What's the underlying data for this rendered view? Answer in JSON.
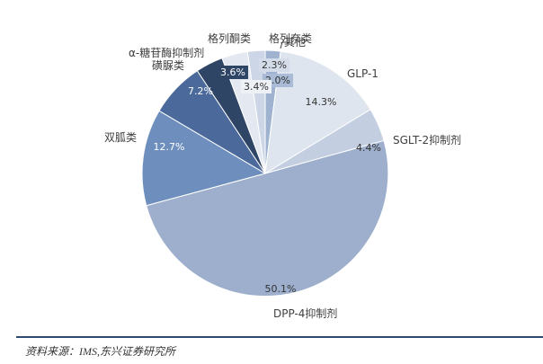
{
  "chart_data": {
    "type": "pie",
    "title": "",
    "center": [
      295,
      193
    ],
    "radius": 137,
    "start_angle_deg": 90,
    "direction": "clockwise",
    "slices": [
      {
        "name": "其他",
        "value": 2.0,
        "label": "2.0%",
        "color": "#9fb3d1"
      },
      {
        "name": "GLP-1",
        "value": 14.3,
        "label": "14.3%",
        "color": "#dfe5ef"
      },
      {
        "name": "SGLT-2抑制剂",
        "value": 4.4,
        "label": "4.4%",
        "color": "#c3cfe1"
      },
      {
        "name": "DPP-4抑制剂",
        "value": 50.1,
        "label": "50.1%",
        "color": "#9dafcc"
      },
      {
        "name": "双胍类",
        "value": 12.7,
        "label": "12.7%",
        "color": "#6e8fbd"
      },
      {
        "name": "磺脲类",
        "value": 7.2,
        "label": "7.2%",
        "color": "#4b6a9b"
      },
      {
        "name": "α-糖苷酶抑制剂",
        "value": 3.6,
        "label": "3.6%",
        "color": "#2f4566"
      },
      {
        "name": "格列酮类",
        "value": 3.4,
        "label": "3.4%",
        "color": "#e4e9f1"
      },
      {
        "name": "格列奈类",
        "value": 2.3,
        "label": "2.3%",
        "color": "#ccd6e6"
      }
    ]
  },
  "labels": {
    "qita": "其他",
    "glp1": "GLP-1",
    "sglt2": "SGLT-2抑制剂",
    "dpp4": "DPP-4抑制剂",
    "shuanggua": "双胍类",
    "huangniao": "磺脲类",
    "alpha": "α-糖苷酶抑制剂",
    "geliedong": "格列酮类",
    "gelienai": "格列奈类"
  },
  "source": "资料来源：IMS,东兴证券研究所"
}
